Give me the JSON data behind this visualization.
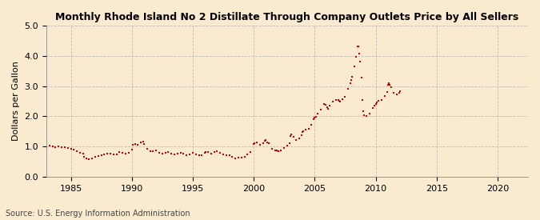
{
  "title": "Monthly Rhode Island No 2 Distillate Through Company Outlets Price by All Sellers",
  "ylabel": "Dollars per Gallon",
  "source": "Source: U.S. Energy Information Administration",
  "background_color": "#faebd0",
  "marker_color": "#cc0000",
  "xlim": [
    1983.0,
    2022.5
  ],
  "ylim": [
    0.0,
    5.0
  ],
  "yticks": [
    0.0,
    1.0,
    2.0,
    3.0,
    4.0,
    5.0
  ],
  "xticks": [
    1985,
    1990,
    1995,
    2000,
    2005,
    2010,
    2015,
    2020
  ],
  "data": [
    [
      1983.25,
      1.02
    ],
    [
      1983.5,
      1.0
    ],
    [
      1983.75,
      0.99
    ],
    [
      1984.0,
      1.0
    ],
    [
      1984.25,
      0.99
    ],
    [
      1984.5,
      0.97
    ],
    [
      1984.75,
      0.94
    ],
    [
      1985.0,
      0.93
    ],
    [
      1985.25,
      0.91
    ],
    [
      1985.5,
      0.85
    ],
    [
      1985.75,
      0.8
    ],
    [
      1986.0,
      0.77
    ],
    [
      1986.08,
      0.65
    ],
    [
      1986.25,
      0.6
    ],
    [
      1986.5,
      0.59
    ],
    [
      1986.75,
      0.62
    ],
    [
      1987.0,
      0.67
    ],
    [
      1987.25,
      0.68
    ],
    [
      1987.5,
      0.72
    ],
    [
      1987.75,
      0.75
    ],
    [
      1988.0,
      0.78
    ],
    [
      1988.25,
      0.76
    ],
    [
      1988.5,
      0.73
    ],
    [
      1988.75,
      0.73
    ],
    [
      1989.0,
      0.81
    ],
    [
      1989.25,
      0.8
    ],
    [
      1989.5,
      0.77
    ],
    [
      1989.75,
      0.8
    ],
    [
      1990.0,
      0.91
    ],
    [
      1990.08,
      1.05
    ],
    [
      1990.25,
      1.08
    ],
    [
      1990.5,
      1.06
    ],
    [
      1990.75,
      1.14
    ],
    [
      1990.92,
      1.17
    ],
    [
      1991.0,
      1.09
    ],
    [
      1991.25,
      0.93
    ],
    [
      1991.5,
      0.84
    ],
    [
      1991.75,
      0.84
    ],
    [
      1992.0,
      0.87
    ],
    [
      1992.25,
      0.8
    ],
    [
      1992.5,
      0.76
    ],
    [
      1992.75,
      0.79
    ],
    [
      1993.0,
      0.83
    ],
    [
      1993.25,
      0.78
    ],
    [
      1993.5,
      0.73
    ],
    [
      1993.75,
      0.76
    ],
    [
      1994.0,
      0.79
    ],
    [
      1994.25,
      0.76
    ],
    [
      1994.5,
      0.72
    ],
    [
      1994.75,
      0.75
    ],
    [
      1995.0,
      0.79
    ],
    [
      1995.25,
      0.75
    ],
    [
      1995.5,
      0.72
    ],
    [
      1995.75,
      0.72
    ],
    [
      1996.0,
      0.8
    ],
    [
      1996.08,
      0.82
    ],
    [
      1996.25,
      0.83
    ],
    [
      1996.5,
      0.78
    ],
    [
      1996.75,
      0.81
    ],
    [
      1997.0,
      0.86
    ],
    [
      1997.25,
      0.8
    ],
    [
      1997.5,
      0.74
    ],
    [
      1997.75,
      0.72
    ],
    [
      1998.0,
      0.72
    ],
    [
      1998.25,
      0.66
    ],
    [
      1998.5,
      0.61
    ],
    [
      1998.75,
      0.63
    ],
    [
      1999.0,
      0.64
    ],
    [
      1999.25,
      0.67
    ],
    [
      1999.5,
      0.74
    ],
    [
      1999.75,
      0.82
    ],
    [
      2000.0,
      1.09
    ],
    [
      2000.08,
      1.12
    ],
    [
      2000.25,
      1.15
    ],
    [
      2000.5,
      1.07
    ],
    [
      2000.75,
      1.12
    ],
    [
      2000.92,
      1.2
    ],
    [
      2001.0,
      1.22
    ],
    [
      2001.08,
      1.15
    ],
    [
      2001.25,
      1.1
    ],
    [
      2001.5,
      0.92
    ],
    [
      2001.75,
      0.87
    ],
    [
      2001.92,
      0.87
    ],
    [
      2002.0,
      0.84
    ],
    [
      2002.25,
      0.88
    ],
    [
      2002.5,
      0.94
    ],
    [
      2002.75,
      1.02
    ],
    [
      2002.92,
      1.1
    ],
    [
      2003.0,
      1.35
    ],
    [
      2003.08,
      1.4
    ],
    [
      2003.25,
      1.32
    ],
    [
      2003.5,
      1.22
    ],
    [
      2003.75,
      1.28
    ],
    [
      2003.92,
      1.38
    ],
    [
      2004.0,
      1.48
    ],
    [
      2004.08,
      1.52
    ],
    [
      2004.25,
      1.55
    ],
    [
      2004.5,
      1.59
    ],
    [
      2004.75,
      1.72
    ],
    [
      2004.92,
      1.9
    ],
    [
      2005.0,
      1.95
    ],
    [
      2005.08,
      1.98
    ],
    [
      2005.25,
      2.1
    ],
    [
      2005.5,
      2.22
    ],
    [
      2005.75,
      2.4
    ],
    [
      2005.92,
      2.38
    ],
    [
      2006.0,
      2.3
    ],
    [
      2006.08,
      2.26
    ],
    [
      2006.25,
      2.35
    ],
    [
      2006.5,
      2.48
    ],
    [
      2006.75,
      2.55
    ],
    [
      2006.92,
      2.55
    ],
    [
      2007.0,
      2.5
    ],
    [
      2007.08,
      2.48
    ],
    [
      2007.25,
      2.56
    ],
    [
      2007.5,
      2.65
    ],
    [
      2007.75,
      2.9
    ],
    [
      2007.92,
      3.1
    ],
    [
      2008.0,
      3.2
    ],
    [
      2008.08,
      3.3
    ],
    [
      2008.25,
      3.65
    ],
    [
      2008.42,
      3.98
    ],
    [
      2008.5,
      4.3
    ],
    [
      2008.58,
      4.32
    ],
    [
      2008.67,
      4.08
    ],
    [
      2008.75,
      3.8
    ],
    [
      2008.83,
      3.28
    ],
    [
      2008.92,
      2.55
    ],
    [
      2009.0,
      2.18
    ],
    [
      2009.08,
      2.05
    ],
    [
      2009.25,
      2.02
    ],
    [
      2009.5,
      2.1
    ],
    [
      2009.75,
      2.28
    ],
    [
      2009.92,
      2.35
    ],
    [
      2010.0,
      2.42
    ],
    [
      2010.08,
      2.45
    ],
    [
      2010.25,
      2.5
    ],
    [
      2010.5,
      2.55
    ],
    [
      2010.75,
      2.68
    ],
    [
      2010.92,
      2.8
    ],
    [
      2011.0,
      3.05
    ],
    [
      2011.08,
      3.1
    ],
    [
      2011.17,
      3.05
    ],
    [
      2011.25,
      2.95
    ],
    [
      2011.5,
      2.78
    ],
    [
      2011.75,
      2.72
    ],
    [
      2011.92,
      2.78
    ],
    [
      2012.0,
      2.82
    ]
  ]
}
